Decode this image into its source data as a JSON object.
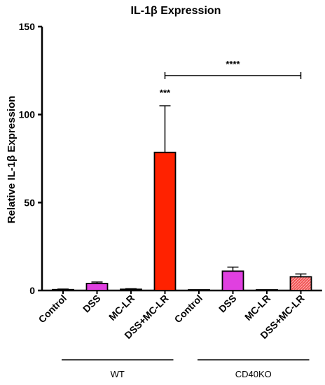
{
  "chart_data": {
    "type": "bar",
    "title": "IL-1β Expression",
    "ylabel": "Relative IL-1β Expression",
    "ylim": [
      0,
      150
    ],
    "yticks": [
      0,
      50,
      100,
      150
    ],
    "categories": [
      "Control",
      "DSS",
      "MC-LR",
      "DSS+MC-LR",
      "Control",
      "DSS",
      "MC-LR",
      "DSS+MC-LR"
    ],
    "values": [
      0.5,
      4.0,
      0.7,
      78.5,
      0.1,
      11.0,
      0.2,
      7.8
    ],
    "errors": [
      0.3,
      0.8,
      0.3,
      26.5,
      0.05,
      2.3,
      0.1,
      1.6
    ],
    "bar_colors": [
      "#7a7a7a",
      "#e040e0",
      "#7a7a7a",
      "#ff2200",
      "#7a7a7a",
      "#e040e0",
      "#7a7a7a",
      "#f05555"
    ],
    "hatched": [
      false,
      false,
      false,
      false,
      false,
      false,
      false,
      true
    ],
    "groups": [
      {
        "label": "WT",
        "categories": [
          0,
          1,
          2,
          3
        ]
      },
      {
        "label": "CD40KO",
        "categories": [
          4,
          5,
          6,
          7
        ]
      }
    ],
    "annotations": [
      {
        "text": "***",
        "category": 3
      },
      {
        "text": "****",
        "from": 3,
        "to": 7
      }
    ]
  }
}
